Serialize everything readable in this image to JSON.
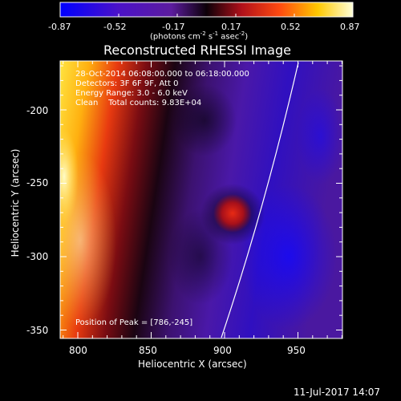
{
  "colorbar": {
    "ticks": [
      "-0.87",
      "-0.52",
      "-0.17",
      "0.17",
      "0.52",
      "0.87"
    ],
    "unit_prefix": "(photons cm",
    "unit_sup1": "-2",
    "unit_mid": " s",
    "unit_sup2": "-1",
    "unit_suffix": " asec",
    "unit_sup3": "-2",
    "unit_close": ")"
  },
  "plot": {
    "title": "Reconstructed RHESSI Image",
    "info_lines": [
      "28-Oct-2014 06:08:00.000 to 06:18:00.000",
      "Detectors: 3F 6F 9F, Att 0",
      "Energy Range: 3.0 - 6.0 keV",
      "Clean    Total counts: 9.83E+04"
    ],
    "peak_label": "Position of Peak = [786,-245]",
    "xlabel": "Heliocentric X (arcsec)",
    "ylabel": "Heliocentric Y (arcsec)",
    "x_ticks": [
      "800",
      "850",
      "900",
      "950"
    ],
    "y_ticks": [
      "-200",
      "-250",
      "-300",
      "-350"
    ]
  },
  "footer": {
    "timestamp": "11-Jul-2017 14:07"
  },
  "colors": {
    "background": "#000000",
    "text": "#ffffff",
    "colormap": [
      "#0000ff",
      "#5a1aa8",
      "#000000",
      "#d8281a",
      "#ff8c00",
      "#ffff40",
      "#ffffff"
    ]
  }
}
